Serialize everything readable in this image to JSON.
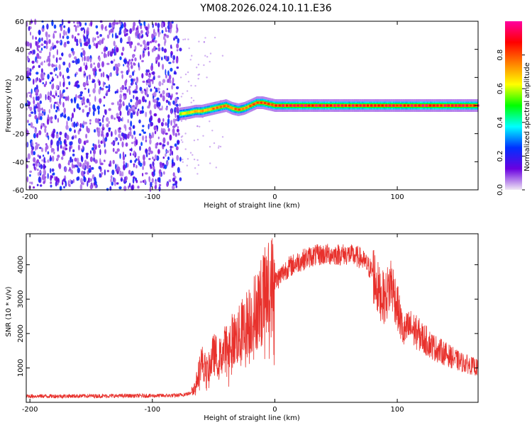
{
  "title": "YM08.2026.024.10.11.E36",
  "chart_data": [
    {
      "type": "heatmap",
      "xlabel": "Height of straight line (km)",
      "ylabel": "Frequency (Hz)",
      "xlim": [
        -203,
        166
      ],
      "ylim": [
        -60,
        60
      ],
      "xticks": [
        -200,
        -100,
        0,
        100
      ],
      "yticks": [
        -60,
        -40,
        -20,
        0,
        20,
        40,
        60
      ],
      "noise_region_km": [
        -203,
        -77
      ],
      "signal_track": {
        "x": [
          -78,
          -70,
          -65,
          -60,
          -55,
          -50,
          -45,
          -40,
          -35,
          -30,
          -25,
          -20,
          -15,
          -10,
          -5,
          0,
          20,
          40,
          60,
          80,
          100,
          120,
          140,
          166
        ],
        "freq": [
          -6,
          -5,
          -4,
          -4,
          -3,
          -2,
          -1,
          0,
          -2,
          -3,
          -2,
          0,
          2,
          2,
          1,
          0,
          0,
          0,
          0,
          0,
          0,
          0,
          0,
          0
        ],
        "amplitude": [
          0.6,
          0.7,
          0.75,
          0.8,
          0.75,
          0.8,
          0.85,
          0.85,
          0.8,
          0.85,
          0.8,
          0.85,
          0.9,
          0.9,
          0.9,
          0.95,
          1.0,
          1.0,
          0.95,
          1.0,
          0.95,
          1.0,
          1.0,
          0.95
        ]
      }
    },
    {
      "type": "line",
      "xlabel": "Height of straight line (km)",
      "ylabel": "SNR (10 * v/v)",
      "xlim": [
        -203,
        166
      ],
      "ylim": [
        0,
        4900
      ],
      "xticks": [
        -200,
        -100,
        0,
        100
      ],
      "yticks": [
        1000,
        2000,
        3000,
        4000
      ],
      "series": [
        {
          "name": "SNR",
          "color": "#e8312c",
          "x": [
            -203,
            -180,
            -160,
            -140,
            -120,
            -100,
            -80,
            -70,
            -65,
            -60,
            -55,
            -50,
            -45,
            -40,
            -35,
            -30,
            -25,
            -20,
            -15,
            -10,
            -5,
            0,
            10,
            20,
            30,
            40,
            50,
            60,
            70,
            80,
            85,
            90,
            95,
            100,
            105,
            110,
            120,
            130,
            140,
            150,
            166
          ],
          "values": [
            180,
            180,
            185,
            185,
            190,
            190,
            200,
            250,
            450,
            1200,
            900,
            1400,
            1300,
            1600,
            1800,
            1900,
            2200,
            2400,
            2700,
            3000,
            3300,
            3500,
            3900,
            4100,
            4250,
            4300,
            4300,
            4300,
            4200,
            3800,
            3200,
            3000,
            3500,
            2800,
            2000,
            2200,
            1900,
            1600,
            1400,
            1200,
            1000
          ]
        }
      ]
    },
    {
      "type": "colorbar",
      "label": "Normalized spectral amplitude",
      "ticks": [
        "0.0",
        "0.2",
        "0.4",
        "0.6",
        "0.8"
      ],
      "stops": [
        "#f0e8f4",
        "#6a00e0",
        "#0030ff",
        "#00ffff",
        "#00ff00",
        "#ffff00",
        "#ff8000",
        "#ff0000",
        "#ff00a0"
      ]
    }
  ]
}
